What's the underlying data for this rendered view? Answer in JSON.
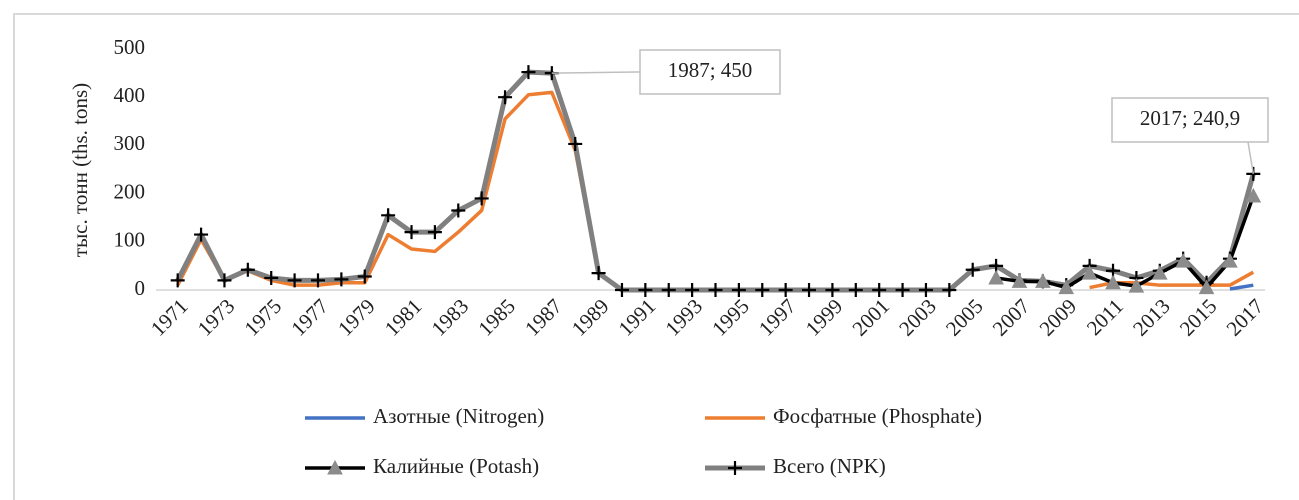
{
  "chart_data": {
    "type": "line",
    "y_label": "тыс. тонн (ths. tons)",
    "x": [
      1971,
      1972,
      1973,
      1974,
      1975,
      1976,
      1977,
      1978,
      1979,
      1980,
      1981,
      1982,
      1983,
      1984,
      1985,
      1986,
      1987,
      1988,
      1989,
      1990,
      1991,
      1992,
      1993,
      1994,
      1995,
      1996,
      1997,
      1998,
      1999,
      2000,
      2001,
      2002,
      2003,
      2004,
      2005,
      2006,
      2007,
      2008,
      2009,
      2010,
      2011,
      2012,
      2013,
      2014,
      2015,
      2016,
      2017
    ],
    "xlim": [
      1970.5,
      2017.5
    ],
    "xticks": [
      1971,
      1973,
      1975,
      1977,
      1979,
      1981,
      1983,
      1985,
      1987,
      1989,
      1991,
      1993,
      1995,
      1997,
      1999,
      2001,
      2003,
      2005,
      2007,
      2009,
      2011,
      2013,
      2015,
      2017
    ],
    "ylim": [
      0,
      500
    ],
    "yticks": [
      0,
      100,
      200,
      300,
      400,
      500
    ],
    "grid": false,
    "legend": "bottom",
    "series": [
      {
        "name": "Азотные (Nitrogen)",
        "color": "#4472c4",
        "marker": "none",
        "values": [
          null,
          null,
          null,
          null,
          null,
          null,
          null,
          null,
          null,
          null,
          null,
          null,
          null,
          null,
          null,
          null,
          null,
          null,
          null,
          null,
          null,
          null,
          null,
          null,
          null,
          null,
          null,
          null,
          null,
          null,
          null,
          null,
          null,
          null,
          null,
          null,
          null,
          null,
          null,
          null,
          null,
          null,
          null,
          null,
          null,
          2,
          10
        ]
      },
      {
        "name": "Фосфатные (Phosphate)",
        "color": "#ed7d31",
        "marker": "none",
        "values": [
          10,
          105,
          20,
          40,
          20,
          10,
          10,
          15,
          15,
          115,
          85,
          80,
          120,
          165,
          355,
          405,
          410,
          290,
          35,
          0,
          0,
          0,
          0,
          0,
          0,
          0,
          0,
          0,
          0,
          0,
          0,
          0,
          0,
          0,
          null,
          null,
          null,
          null,
          null,
          5,
          15,
          15,
          10,
          10,
          10,
          10,
          37
        ]
      },
      {
        "name": "Калийные (Potash)",
        "color": "#000000",
        "marker": "triangle",
        "values": [
          null,
          null,
          null,
          null,
          null,
          null,
          null,
          null,
          null,
          null,
          null,
          null,
          null,
          null,
          null,
          null,
          null,
          null,
          null,
          null,
          null,
          null,
          null,
          null,
          null,
          null,
          null,
          null,
          null,
          null,
          null,
          null,
          null,
          null,
          null,
          25,
          18,
          18,
          5,
          35,
          15,
          8,
          35,
          60,
          5,
          60,
          195
        ]
      },
      {
        "name": "Всего (NPK)",
        "color": "#808080",
        "marker": "plus",
        "values": [
          20,
          115,
          20,
          42,
          25,
          20,
          20,
          22,
          28,
          155,
          120,
          120,
          165,
          190,
          400,
          452,
          450,
          303,
          35,
          0,
          0,
          0,
          0,
          0,
          0,
          0,
          0,
          0,
          0,
          0,
          0,
          0,
          0,
          0,
          42,
          50,
          20,
          18,
          10,
          50,
          40,
          25,
          40,
          65,
          15,
          65,
          240.9
        ]
      }
    ],
    "annotations": [
      {
        "text": "1987; 450",
        "series": 3,
        "index": 16
      },
      {
        "text": "2017; 240,9",
        "series": 3,
        "index": 46
      }
    ]
  }
}
